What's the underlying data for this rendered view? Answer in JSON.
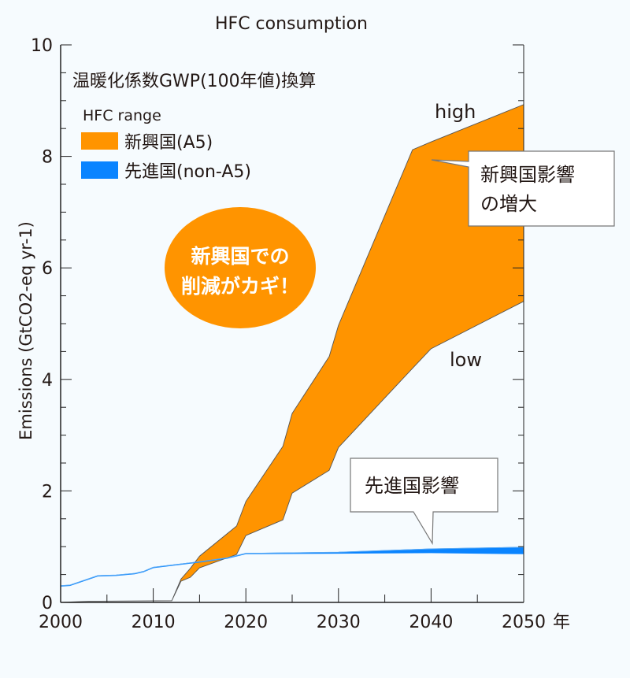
{
  "chart_data": {
    "type": "area",
    "title": "HFC consumption",
    "subtitle": "温暖化係数GWP(100年値)換算",
    "ylabel": "Emissions (GtCO2-eq yr-1)",
    "xlabel": "",
    "x_unit_label": "年",
    "xlim": [
      2000,
      2050
    ],
    "ylim": [
      0,
      10
    ],
    "x_ticks": [
      2000,
      2010,
      2020,
      2030,
      2040,
      2050
    ],
    "y_ticks": [
      0,
      2,
      4,
      6,
      8,
      10
    ],
    "grid": false,
    "legend": {
      "title": "HFC range",
      "position": "top-left",
      "entries": [
        {
          "label": "新興国(A5)",
          "color": "#ff9400"
        },
        {
          "label": "先進国(non-A5)",
          "color": "#0a84ff"
        }
      ]
    },
    "series": [
      {
        "name": "新興国(A5)",
        "color": "#ff9400",
        "x": [
          2000,
          2003,
          2012,
          2013,
          2014,
          2015,
          2019,
          2020,
          2024,
          2025,
          2029,
          2030,
          2038,
          2040,
          2050
        ],
        "high": [
          0,
          0.02,
          0.03,
          0.42,
          0.61,
          0.83,
          1.37,
          1.81,
          2.8,
          3.39,
          4.41,
          4.97,
          8.12,
          8.26,
          8.93
        ],
        "low": [
          0,
          0.02,
          0.03,
          0.38,
          0.45,
          0.62,
          0.86,
          1.2,
          1.48,
          1.96,
          2.37,
          2.78,
          4.2,
          4.55,
          5.4
        ]
      },
      {
        "name": "先進国(non-A5)",
        "color": "#0a84ff",
        "x": [
          2000,
          2001,
          2004,
          2006,
          2008,
          2009,
          2010,
          2012,
          2015,
          2018,
          2020,
          2030,
          2040,
          2050
        ],
        "high": [
          0.3,
          0.31,
          0.48,
          0.49,
          0.52,
          0.56,
          0.63,
          0.67,
          0.73,
          0.8,
          0.88,
          0.9,
          0.96,
          0.99
        ],
        "low": [
          0.29,
          0.3,
          0.47,
          0.48,
          0.51,
          0.55,
          0.62,
          0.66,
          0.72,
          0.79,
          0.87,
          0.88,
          0.89,
          0.87
        ]
      }
    ],
    "annotations": {
      "high": "high",
      "low": "low",
      "bubble_line1": "新興国での",
      "bubble_line2": "削減がカギ！",
      "callout_a5_line1": "新興国影響",
      "callout_a5_line2": "の増大",
      "callout_nona5": "先進国影響"
    }
  }
}
